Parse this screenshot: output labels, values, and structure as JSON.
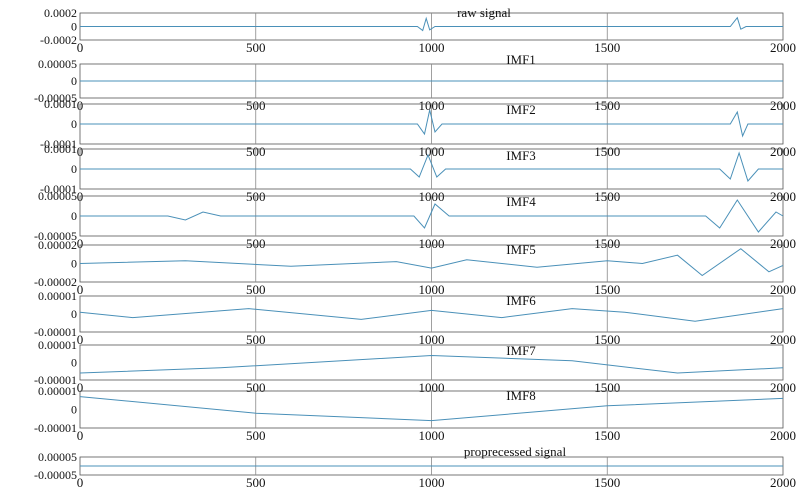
{
  "chart_data": [
    {
      "type": "line",
      "title": "raw signal",
      "xlim": [
        0,
        2000
      ],
      "x_ticks": [
        "0",
        "500",
        "1000",
        "1500",
        "2000"
      ],
      "y_ticks": [
        "0.0002",
        "0",
        "-0.0002"
      ],
      "ylim": [
        -0.0002,
        0.0002
      ],
      "series": [
        {
          "x": [
            0,
            400,
            800,
            960,
            975,
            985,
            995,
            1010,
            1200,
            1600,
            1850,
            1870,
            1880,
            1895,
            2000
          ],
          "values": [
            0,
            0,
            0,
            0,
            -6e-05,
            0.00012,
            -5e-05,
            0,
            0,
            0,
            0,
            0.00013,
            -4e-05,
            0,
            0
          ]
        }
      ]
    },
    {
      "type": "line",
      "title": "IMF1",
      "xlim": [
        0,
        2000
      ],
      "x_ticks": [
        "0",
        "500",
        "1000",
        "1500",
        "2000"
      ],
      "y_ticks": [
        "0.00005",
        "0",
        "-0.00005"
      ],
      "ylim": [
        -5e-05,
        5e-05
      ],
      "series": [
        {
          "x": [
            0,
            250,
            500,
            750,
            1000,
            1250,
            1500,
            1750,
            2000
          ],
          "values": [
            0,
            0,
            0,
            0,
            0,
            0,
            0,
            0,
            0
          ]
        }
      ]
    },
    {
      "type": "line",
      "title": "IMF2",
      "xlim": [
        0,
        2000
      ],
      "x_ticks": [
        "0",
        "500",
        "1000",
        "1500",
        "2000"
      ],
      "y_ticks": [
        "0.0001",
        "0",
        "-0.0001"
      ],
      "ylim": [
        -0.0001,
        0.0001
      ],
      "series": [
        {
          "x": [
            0,
            960,
            980,
            995,
            1010,
            1030,
            1850,
            1870,
            1885,
            1900,
            2000
          ],
          "values": [
            0,
            0,
            -5e-05,
            7e-05,
            -4e-05,
            0,
            0,
            6e-05,
            -6e-05,
            0,
            0
          ]
        }
      ]
    },
    {
      "type": "line",
      "title": "IMF3",
      "xlim": [
        0,
        2000
      ],
      "x_ticks": [
        "0",
        "500",
        "1000",
        "1500",
        "2000"
      ],
      "y_ticks": [
        "0.0001",
        "0",
        "-0.0001"
      ],
      "ylim": [
        -0.0001,
        0.0001
      ],
      "series": [
        {
          "x": [
            0,
            940,
            965,
            990,
            1015,
            1040,
            1820,
            1850,
            1875,
            1900,
            1930,
            2000
          ],
          "values": [
            0,
            0,
            -4e-05,
            7e-05,
            -4e-05,
            0,
            0,
            -5e-05,
            8e-05,
            -6e-05,
            0,
            0
          ]
        }
      ]
    },
    {
      "type": "line",
      "title": "IMF4",
      "xlim": [
        0,
        2000
      ],
      "x_ticks": [
        "0",
        "500",
        "1000",
        "1500",
        "2000"
      ],
      "y_ticks": [
        "0.00005",
        "0",
        "-0.00005"
      ],
      "ylim": [
        -5e-05,
        5e-05
      ],
      "series": [
        {
          "x": [
            0,
            250,
            300,
            350,
            400,
            950,
            980,
            1010,
            1050,
            1780,
            1820,
            1870,
            1930,
            1980,
            2000
          ],
          "values": [
            0,
            0,
            -1e-05,
            1e-05,
            0,
            0,
            -3e-05,
            3e-05,
            0,
            0,
            -3e-05,
            4e-05,
            -4e-05,
            1e-05,
            0
          ]
        }
      ]
    },
    {
      "type": "line",
      "title": "IMF5",
      "xlim": [
        0,
        2000
      ],
      "x_ticks": [
        "0",
        "500",
        "1000",
        "1500",
        "2000"
      ],
      "y_ticks": [
        "0.00002",
        "0",
        "-0.00002"
      ],
      "ylim": [
        -2e-05,
        2e-05
      ],
      "series": [
        {
          "x": [
            0,
            300,
            600,
            900,
            1000,
            1100,
            1300,
            1500,
            1600,
            1700,
            1770,
            1880,
            1960,
            2000
          ],
          "values": [
            0,
            3e-06,
            -3e-06,
            2e-06,
            -5e-06,
            4e-06,
            -4e-06,
            3e-06,
            0,
            9e-06,
            -1.3e-05,
            1.6e-05,
            -9e-06,
            -2e-06
          ]
        }
      ]
    },
    {
      "type": "line",
      "title": "IMF6",
      "xlim": [
        0,
        2000
      ],
      "x_ticks": [
        "0",
        "500",
        "1000",
        "1500",
        "2000"
      ],
      "y_ticks": [
        "0.00001",
        "0",
        "-0.00001"
      ],
      "ylim": [
        -1e-05,
        1e-05
      ],
      "series": [
        {
          "x": [
            0,
            150,
            480,
            800,
            1000,
            1200,
            1400,
            1550,
            1750,
            2000
          ],
          "values": [
            1e-06,
            -2e-06,
            3e-06,
            -3e-06,
            2e-06,
            -2e-06,
            3e-06,
            1e-06,
            -4e-06,
            3e-06
          ]
        }
      ]
    },
    {
      "type": "line",
      "title": "IMF7",
      "xlim": [
        0,
        2000
      ],
      "x_ticks": [
        "0",
        "500",
        "1000",
        "1500",
        "2000"
      ],
      "y_ticks": [
        "0.00001",
        "0",
        "-0.00001"
      ],
      "ylim": [
        -1e-05,
        1e-05
      ],
      "series": [
        {
          "x": [
            0,
            400,
            1000,
            1400,
            1700,
            2000
          ],
          "values": [
            -6e-06,
            -3e-06,
            4e-06,
            1e-06,
            -6e-06,
            -3e-06
          ]
        }
      ]
    },
    {
      "type": "line",
      "title": "IMF8",
      "xlim": [
        0,
        2000
      ],
      "x_ticks": [
        "0",
        "500",
        "1000",
        "1500",
        "2000"
      ],
      "y_ticks": [
        "0.00001",
        "0",
        "-0.00001"
      ],
      "ylim": [
        -1e-05,
        1e-05
      ],
      "series": [
        {
          "x": [
            0,
            500,
            1000,
            1500,
            2000
          ],
          "values": [
            7e-06,
            -2e-06,
            -6e-06,
            2e-06,
            6e-06
          ]
        }
      ]
    },
    {
      "type": "line",
      "title": "proprecessed signal",
      "xlim": [
        0,
        2000
      ],
      "x_ticks": [
        "0",
        "500",
        "1000",
        "1500",
        "2000"
      ],
      "y_ticks": [
        "0.00005",
        "-0.00005"
      ],
      "ylim": [
        -5e-05,
        5e-05
      ],
      "series": [
        {
          "x": [
            0,
            250,
            500,
            750,
            1000,
            1250,
            1500,
            1750,
            2000
          ],
          "values": [
            0,
            0,
            0,
            0,
            0,
            0,
            0,
            0,
            0
          ]
        }
      ]
    }
  ],
  "colors": {
    "line": "#4a90b8",
    "frame": "#555555",
    "text": "#111111"
  }
}
